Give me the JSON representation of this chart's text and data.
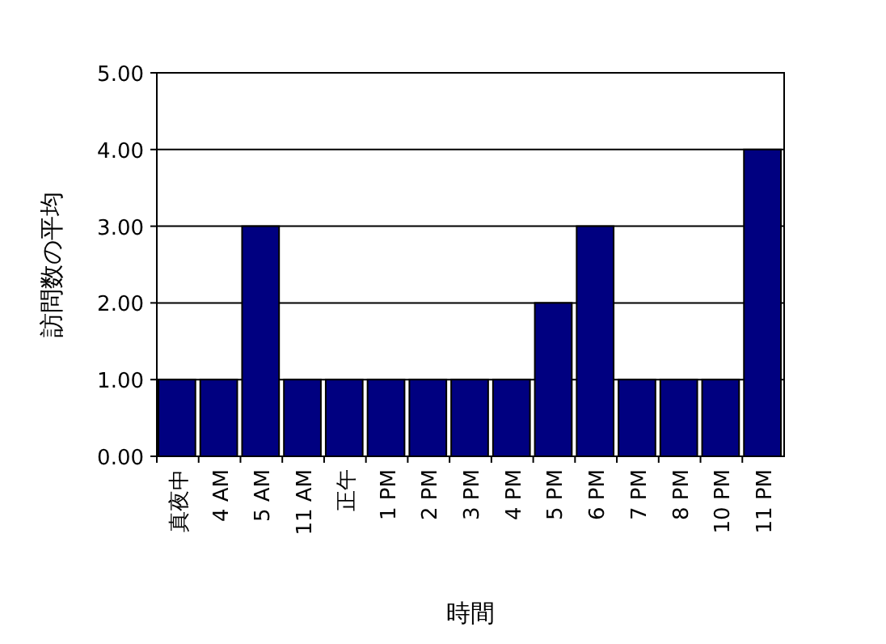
{
  "chart_data": {
    "type": "bar",
    "xlabel": "時間",
    "ylabel": "訪問数の平均",
    "categories": [
      "真夜中",
      "4 AM",
      "5 AM",
      "11 AM",
      "正午",
      "1 PM",
      "2 PM",
      "3 PM",
      "4 PM",
      "5 PM",
      "6 PM",
      "7 PM",
      "8 PM",
      "10 PM",
      "11 PM"
    ],
    "values": [
      1,
      1,
      3,
      1,
      1,
      1,
      1,
      1,
      1,
      2,
      3,
      1,
      1,
      1,
      4
    ],
    "color": "#000080",
    "ylim": [
      0,
      5
    ],
    "yticks": [
      {
        "value": 0,
        "label": "0.00"
      },
      {
        "value": 1,
        "label": "1.00"
      },
      {
        "value": 2,
        "label": "2.00"
      },
      {
        "value": 3,
        "label": "3.00"
      },
      {
        "value": 4,
        "label": "4.00"
      },
      {
        "value": 5,
        "label": "5.00"
      }
    ],
    "grid": "y"
  }
}
